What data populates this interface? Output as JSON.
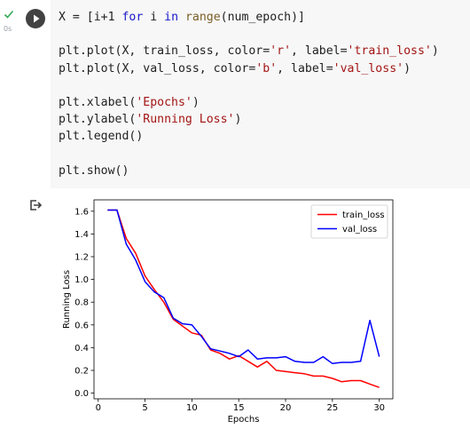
{
  "cell": {
    "exec_time": "0s",
    "status": "completed",
    "code_lines": [
      [
        {
          "t": "X = [i+1 ",
          "c": ""
        },
        {
          "t": "for",
          "c": "kw"
        },
        {
          "t": " i ",
          "c": ""
        },
        {
          "t": "in",
          "c": "kw"
        },
        {
          "t": " ",
          "c": ""
        },
        {
          "t": "range",
          "c": "fn"
        },
        {
          "t": "(num_epoch)]",
          "c": ""
        }
      ],
      [],
      [
        {
          "t": "plt.plot(X, train_loss, color=",
          "c": ""
        },
        {
          "t": "'r'",
          "c": "str"
        },
        {
          "t": ", label=",
          "c": ""
        },
        {
          "t": "'train_loss'",
          "c": "str"
        },
        {
          "t": ")",
          "c": ""
        }
      ],
      [
        {
          "t": "plt.plot(X, val_loss, color=",
          "c": ""
        },
        {
          "t": "'b'",
          "c": "str"
        },
        {
          "t": ", label=",
          "c": ""
        },
        {
          "t": "'val_loss'",
          "c": "str"
        },
        {
          "t": ")",
          "c": ""
        }
      ],
      [],
      [
        {
          "t": "plt.xlabel(",
          "c": ""
        },
        {
          "t": "'Epochs'",
          "c": "str"
        },
        {
          "t": ")",
          "c": ""
        }
      ],
      [
        {
          "t": "plt.ylabel(",
          "c": ""
        },
        {
          "t": "'Running Loss'",
          "c": "str"
        },
        {
          "t": ")",
          "c": ""
        }
      ],
      [
        {
          "t": "plt.legend()",
          "c": ""
        }
      ],
      [],
      [
        {
          "t": "plt.show()",
          "c": ""
        }
      ]
    ]
  },
  "colors": {
    "run_button": "#424242",
    "check": "#34a853",
    "code_background": "#f7f7f7",
    "keyword": "#1a16c9",
    "function": "#795e26",
    "string": "#a31515"
  },
  "icons": {
    "status": "check-icon",
    "run": "play-icon",
    "output": "output-redirect-icon"
  },
  "chart_data": {
    "type": "line",
    "xlabel": "Epochs",
    "ylabel": "Running Loss",
    "xlim": [
      -0.45,
      31.45
    ],
    "ylim": [
      -0.05,
      1.7
    ],
    "xticks": [
      0,
      5,
      10,
      15,
      20,
      25,
      30
    ],
    "yticks": [
      0.0,
      0.2,
      0.4,
      0.6,
      0.8,
      1.0,
      1.2,
      1.4,
      1.6
    ],
    "ytick_labels": [
      "0.0",
      "0.2",
      "0.4",
      "0.6",
      "0.8",
      "1.0",
      "1.2",
      "1.4",
      "1.6"
    ],
    "grid": false,
    "legend_position": "upper right",
    "x": [
      1,
      2,
      3,
      4,
      5,
      6,
      7,
      8,
      9,
      10,
      11,
      12,
      13,
      14,
      15,
      16,
      17,
      18,
      19,
      20,
      21,
      22,
      23,
      24,
      25,
      26,
      27,
      28,
      29,
      30
    ],
    "series": [
      {
        "name": "train_loss",
        "color": "#ff0000",
        "values": [
          1.61,
          1.61,
          1.36,
          1.23,
          1.03,
          0.91,
          0.8,
          0.65,
          0.59,
          0.53,
          0.51,
          0.38,
          0.35,
          0.3,
          0.33,
          0.28,
          0.23,
          0.28,
          0.2,
          0.19,
          0.18,
          0.17,
          0.15,
          0.15,
          0.13,
          0.1,
          0.11,
          0.11,
          0.08,
          0.05
        ]
      },
      {
        "name": "val_loss",
        "color": "#0000ff",
        "values": [
          1.61,
          1.61,
          1.31,
          1.17,
          0.98,
          0.89,
          0.84,
          0.66,
          0.61,
          0.6,
          0.5,
          0.39,
          0.37,
          0.35,
          0.32,
          0.38,
          0.3,
          0.31,
          0.31,
          0.32,
          0.28,
          0.27,
          0.27,
          0.32,
          0.26,
          0.27,
          0.27,
          0.28,
          0.64,
          0.32
        ]
      }
    ]
  }
}
